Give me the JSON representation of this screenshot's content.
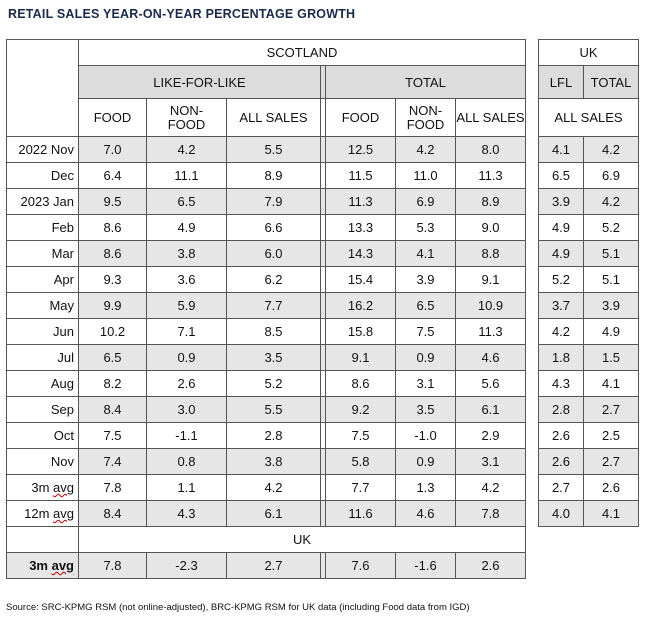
{
  "title": "RETAIL SALES YEAR-ON-YEAR PERCENTAGE GROWTH",
  "header": {
    "scotland": "SCOTLAND",
    "uk": "UK",
    "lfl_group": "LIKE-FOR-LIKE",
    "total_group": "TOTAL",
    "uk_lfl": "LFL",
    "uk_total": "TOTAL",
    "food": "FOOD",
    "non_food_1": "NON-",
    "non_food_2": "FOOD",
    "all_sales": "ALL SALES",
    "uk_all_sales": "ALL SALES"
  },
  "rows": [
    {
      "label": "2022 Nov",
      "v": [
        "7.0",
        "4.2",
        "5.5",
        "12.5",
        "4.2",
        "8.0",
        "4.1",
        "4.2"
      ]
    },
    {
      "label": "Dec",
      "v": [
        "6.4",
        "11.1",
        "8.9",
        "11.5",
        "11.0",
        "11.3",
        "6.5",
        "6.9"
      ]
    },
    {
      "label": "2023 Jan",
      "v": [
        "9.5",
        "6.5",
        "7.9",
        "11.3",
        "6.9",
        "8.9",
        "3.9",
        "4.2"
      ]
    },
    {
      "label": "Feb",
      "v": [
        "8.6",
        "4.9",
        "6.6",
        "13.3",
        "5.3",
        "9.0",
        "4.9",
        "5.2"
      ]
    },
    {
      "label": "Mar",
      "v": [
        "8.6",
        "3.8",
        "6.0",
        "14.3",
        "4.1",
        "8.8",
        "4.9",
        "5.1"
      ]
    },
    {
      "label": "Apr",
      "v": [
        "9.3",
        "3.6",
        "6.2",
        "15.4",
        "3.9",
        "9.1",
        "5.2",
        "5.1"
      ]
    },
    {
      "label": "May",
      "v": [
        "9.9",
        "5.9",
        "7.7",
        "16.2",
        "6.5",
        "10.9",
        "3.7",
        "3.9"
      ]
    },
    {
      "label": "Jun",
      "v": [
        "10.2",
        "7.1",
        "8.5",
        "15.8",
        "7.5",
        "11.3",
        "4.2",
        "4.9"
      ]
    },
    {
      "label": "Jul",
      "v": [
        "6.5",
        "0.9",
        "3.5",
        "9.1",
        "0.9",
        "4.6",
        "1.8",
        "1.5"
      ]
    },
    {
      "label": "Aug",
      "v": [
        "8.2",
        "2.6",
        "5.2",
        "8.6",
        "3.1",
        "5.6",
        "4.3",
        "4.1"
      ]
    },
    {
      "label": "Sep",
      "v": [
        "8.4",
        "3.0",
        "5.5",
        "9.2",
        "3.5",
        "6.1",
        "2.8",
        "2.7"
      ]
    },
    {
      "label": "Oct",
      "v": [
        "7.5",
        "-1.1",
        "2.8",
        "7.5",
        "-1.0",
        "2.9",
        "2.6",
        "2.5"
      ]
    },
    {
      "label": "Nov",
      "v": [
        "7.4",
        "0.8",
        "3.8",
        "5.8",
        "0.9",
        "3.1",
        "2.6",
        "2.7"
      ]
    },
    {
      "label_pre": "3m ",
      "label_sq": "avg",
      "v": [
        "7.8",
        "1.1",
        "4.2",
        "7.7",
        "1.3",
        "4.2",
        "2.7",
        "2.6"
      ]
    },
    {
      "label_pre": "12m ",
      "label_sq": "avg",
      "v": [
        "8.4",
        "4.3",
        "6.1",
        "11.6",
        "4.6",
        "7.8",
        "4.0",
        "4.1"
      ]
    }
  ],
  "uk_section": {
    "heading": "UK",
    "label_pre": "3m ",
    "label_sq": "avg",
    "v": [
      "7.8",
      "-2.3",
      "2.7",
      "7.6",
      "-1.6",
      "2.6"
    ]
  },
  "source": "Source: SRC-KPMG RSM (not online-adjusted), BRC-KPMG RSM for UK data (including Food data from IGD)"
}
